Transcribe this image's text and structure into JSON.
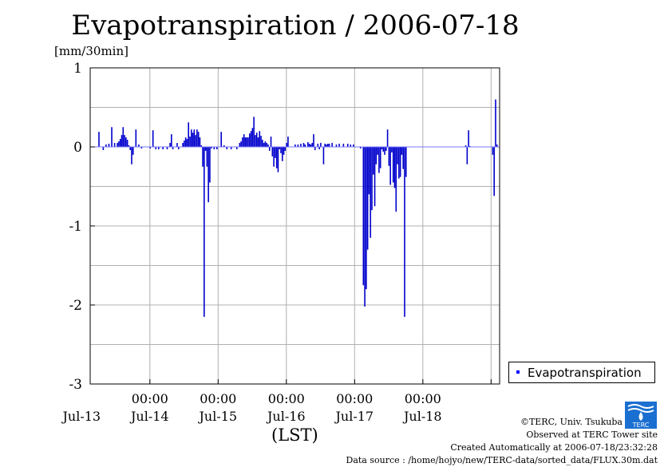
{
  "chart_data": {
    "type": "bar",
    "title": "Evapotranspiration / 2006-07-18",
    "ylabel": "[mm/30min]",
    "xlabel": "(LST)",
    "ylim": [
      -3,
      1
    ],
    "xlim_hours": [
      0,
      144
    ],
    "y_ticks": [
      "1",
      "0",
      "-1",
      "-2",
      "-3"
    ],
    "x_time_ticks": [
      "00:00",
      "00:00",
      "00:00",
      "00:00",
      "00:00"
    ],
    "x_day_labels": [
      "Jul-13",
      "Jul-14",
      "Jul-15",
      "Jul-16",
      "Jul-17",
      "Jul-18"
    ],
    "grid": true,
    "legend": "right",
    "series": [
      {
        "name": "Evapotranspiration",
        "color": "#0000cc",
        "points": [
          [
            3.0,
            0.19
          ],
          [
            4.5,
            -0.04
          ],
          [
            5.5,
            0.03
          ],
          [
            6.5,
            0.04
          ],
          [
            7.5,
            0.25
          ],
          [
            8.5,
            0.05
          ],
          [
            9.5,
            0.05
          ],
          [
            10.0,
            0.07
          ],
          [
            10.5,
            0.1
          ],
          [
            11.0,
            0.15
          ],
          [
            11.5,
            0.25
          ],
          [
            12.0,
            0.15
          ],
          [
            12.5,
            0.12
          ],
          [
            13.0,
            0.09
          ],
          [
            13.5,
            0.02
          ],
          [
            14.0,
            -0.04
          ],
          [
            14.5,
            -0.22
          ],
          [
            15.0,
            -0.1
          ],
          [
            16.0,
            0.22
          ],
          [
            17.0,
            0.03
          ],
          [
            18.0,
            -0.02
          ],
          [
            21.0,
            -0.02
          ],
          [
            22.0,
            0.21
          ],
          [
            23.0,
            -0.03
          ],
          [
            24.0,
            -0.03
          ],
          [
            25.5,
            -0.03
          ],
          [
            27.0,
            -0.03
          ],
          [
            28.0,
            0.05
          ],
          [
            28.5,
            0.16
          ],
          [
            29.0,
            -0.03
          ],
          [
            30.5,
            0.05
          ],
          [
            31.0,
            -0.03
          ],
          [
            32.5,
            0.05
          ],
          [
            33.0,
            0.08
          ],
          [
            33.5,
            0.12
          ],
          [
            34.0,
            0.1
          ],
          [
            34.5,
            0.31
          ],
          [
            35.0,
            0.13
          ],
          [
            35.5,
            0.22
          ],
          [
            36.0,
            0.18
          ],
          [
            36.5,
            0.22
          ],
          [
            37.0,
            0.15
          ],
          [
            37.5,
            0.22
          ],
          [
            38.0,
            0.19
          ],
          [
            38.5,
            0.12
          ],
          [
            39.0,
            0.02
          ],
          [
            39.5,
            -0.25
          ],
          [
            40.0,
            -2.15
          ],
          [
            40.5,
            -0.05
          ],
          [
            41.0,
            -0.25
          ],
          [
            41.5,
            -0.7
          ],
          [
            42.0,
            -0.45
          ],
          [
            42.5,
            -0.02
          ],
          [
            43.5,
            -0.03
          ],
          [
            44.5,
            -0.03
          ],
          [
            46.0,
            0.19
          ],
          [
            47.0,
            0.02
          ],
          [
            48.0,
            -0.03
          ],
          [
            49.5,
            -0.03
          ],
          [
            51.5,
            -0.03
          ],
          [
            52.5,
            0.05
          ],
          [
            53.0,
            0.07
          ],
          [
            53.5,
            0.12
          ],
          [
            54.0,
            0.16
          ],
          [
            54.5,
            0.12
          ],
          [
            55.0,
            0.12
          ],
          [
            55.5,
            0.12
          ],
          [
            56.0,
            0.17
          ],
          [
            56.5,
            0.2
          ],
          [
            57.0,
            0.24
          ],
          [
            57.5,
            0.38
          ],
          [
            58.0,
            0.15
          ],
          [
            58.5,
            0.18
          ],
          [
            59.0,
            0.12
          ],
          [
            59.5,
            0.2
          ],
          [
            60.0,
            0.14
          ],
          [
            60.5,
            0.09
          ],
          [
            61.0,
            0.05
          ],
          [
            61.5,
            0.07
          ],
          [
            62.0,
            0.05
          ],
          [
            62.5,
            0.03
          ],
          [
            63.0,
            -0.05
          ],
          [
            63.5,
            0.13
          ],
          [
            64.0,
            -0.12
          ],
          [
            64.5,
            -0.25
          ],
          [
            65.0,
            -0.14
          ],
          [
            65.5,
            -0.27
          ],
          [
            66.0,
            -0.32
          ],
          [
            66.5,
            -0.03
          ],
          [
            67.0,
            -0.08
          ],
          [
            67.5,
            -0.18
          ],
          [
            68.0,
            -0.1
          ],
          [
            68.5,
            -0.05
          ],
          [
            69.0,
            0.05
          ],
          [
            69.5,
            0.13
          ],
          [
            72.0,
            0.03
          ],
          [
            73.0,
            0.03
          ],
          [
            74.0,
            0.04
          ],
          [
            75.0,
            0.05
          ],
          [
            75.5,
            0.03
          ],
          [
            76.5,
            0.06
          ],
          [
            77.0,
            0.04
          ],
          [
            77.5,
            0.03
          ],
          [
            78.0,
            0.05
          ],
          [
            78.5,
            0.16
          ],
          [
            79.0,
            -0.04
          ],
          [
            80.0,
            0.04
          ],
          [
            80.5,
            -0.03
          ],
          [
            81.0,
            0.05
          ],
          [
            82.0,
            -0.22
          ],
          [
            82.5,
            0.04
          ],
          [
            83.0,
            0.03
          ],
          [
            83.5,
            0.04
          ],
          [
            84.0,
            0.04
          ],
          [
            85.0,
            0.05
          ],
          [
            86.5,
            0.03
          ],
          [
            87.5,
            0.04
          ],
          [
            89.0,
            0.04
          ],
          [
            90.5,
            0.04
          ],
          [
            91.5,
            0.03
          ],
          [
            92.5,
            0.03
          ],
          [
            95.0,
            -0.02
          ],
          [
            96.0,
            -1.75
          ],
          [
            96.5,
            -2.02
          ],
          [
            97.0,
            -1.8
          ],
          [
            97.5,
            -1.3
          ],
          [
            98.0,
            -0.6
          ],
          [
            98.5,
            -1.15
          ],
          [
            99.0,
            -0.8
          ],
          [
            99.5,
            -0.35
          ],
          [
            100.0,
            -0.75
          ],
          [
            100.5,
            -0.22
          ],
          [
            101.0,
            -0.1
          ],
          [
            101.5,
            -0.33
          ],
          [
            102.0,
            -0.27
          ],
          [
            102.5,
            -0.03
          ],
          [
            103.0,
            -0.06
          ],
          [
            103.5,
            -0.1
          ],
          [
            104.0,
            -0.05
          ],
          [
            104.5,
            0.22
          ],
          [
            105.0,
            -0.24
          ],
          [
            105.5,
            -0.48
          ],
          [
            106.0,
            -0.07
          ],
          [
            106.5,
            -0.45
          ],
          [
            107.0,
            -0.52
          ],
          [
            107.5,
            -0.82
          ],
          [
            108.0,
            -0.22
          ],
          [
            108.5,
            -0.4
          ],
          [
            109.0,
            -0.38
          ],
          [
            109.5,
            -0.1
          ],
          [
            110.0,
            -0.28
          ],
          [
            110.5,
            -2.15
          ],
          [
            111.0,
            -0.38
          ],
          [
            132.0,
            0.02
          ],
          [
            132.5,
            -0.22
          ],
          [
            133.0,
            0.21
          ],
          [
            133.5,
            0.01
          ],
          [
            141.5,
            -0.1
          ],
          [
            142.0,
            -0.62
          ],
          [
            142.5,
            0.6
          ],
          [
            143.0,
            0.03
          ]
        ]
      }
    ]
  },
  "legend": {
    "label": "Evapotranspiration"
  },
  "credits": {
    "line1": "©TERC, Univ. Tsukuba",
    "line2": "Observed at TERC Tower site",
    "line3": "Created Automatically at 2006-07-18/23:32:28",
    "line4": "Data source : /home/hojyo/new/TERC-data/sorted_data/FLUX.30m.dat"
  },
  "logo": {
    "icon": "terc-logo-icon",
    "text": "TERC"
  }
}
